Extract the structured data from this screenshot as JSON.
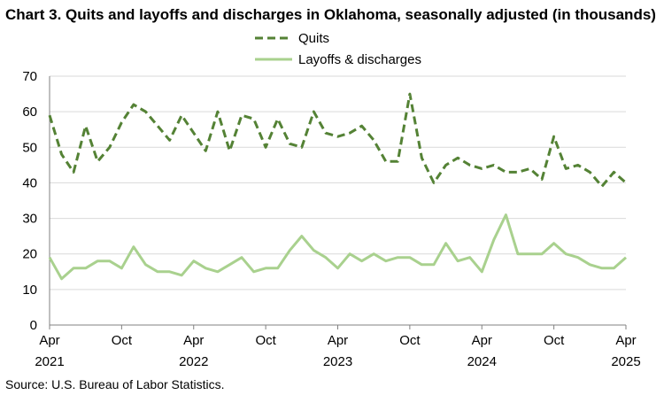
{
  "title": "Chart 3. Quits and layoffs and discharges in Oklahoma, seasonally adjusted (in thousands)",
  "source": "Source: U.S. Bureau of Labor Statistics.",
  "chart_data": {
    "type": "line",
    "title": "Chart 3. Quits and layoffs and discharges in Oklahoma, seasonally adjusted (in thousands)",
    "xlabel": "",
    "ylabel": "",
    "ylim": [
      0,
      70
    ],
    "yticks": [
      0,
      10,
      20,
      30,
      40,
      50,
      60,
      70
    ],
    "grid": true,
    "legend_position": "top-center",
    "x": [
      "Apr 2021",
      "May 2021",
      "Jun 2021",
      "Jul 2021",
      "Aug 2021",
      "Sep 2021",
      "Oct 2021",
      "Nov 2021",
      "Dec 2021",
      "Jan 2022",
      "Feb 2022",
      "Mar 2022",
      "Apr 2022",
      "May 2022",
      "Jun 2022",
      "Jul 2022",
      "Aug 2022",
      "Sep 2022",
      "Oct 2022",
      "Nov 2022",
      "Dec 2022",
      "Jan 2023",
      "Feb 2023",
      "Mar 2023",
      "Apr 2023",
      "May 2023",
      "Jun 2023",
      "Jul 2023",
      "Aug 2023",
      "Sep 2023",
      "Oct 2023",
      "Nov 2023",
      "Dec 2023",
      "Jan 2024",
      "Feb 2024",
      "Mar 2024",
      "Apr 2024",
      "May 2024",
      "Jun 2024",
      "Jul 2024",
      "Aug 2024",
      "Sep 2024",
      "Oct 2024",
      "Nov 2024",
      "Dec 2024",
      "Jan 2025",
      "Feb 2025",
      "Mar 2025",
      "Apr 2025"
    ],
    "x_tick_labels": [
      {
        "index": 0,
        "month": "Apr",
        "year": "2021"
      },
      {
        "index": 6,
        "month": "Oct",
        "year": ""
      },
      {
        "index": 12,
        "month": "Apr",
        "year": "2022"
      },
      {
        "index": 18,
        "month": "Oct",
        "year": ""
      },
      {
        "index": 24,
        "month": "Apr",
        "year": "2023"
      },
      {
        "index": 30,
        "month": "Oct",
        "year": ""
      },
      {
        "index": 36,
        "month": "Apr",
        "year": "2024"
      },
      {
        "index": 42,
        "month": "Oct",
        "year": ""
      },
      {
        "index": 48,
        "month": "Apr",
        "year": "2025"
      }
    ],
    "series": [
      {
        "name": "Quits",
        "color": "#548235",
        "style": "dashed",
        "values": [
          59,
          48,
          43,
          56,
          46,
          50,
          57,
          62,
          60,
          56,
          52,
          59,
          54,
          49,
          60,
          49,
          59,
          58,
          50,
          58,
          51,
          50,
          60,
          54,
          53,
          54,
          56,
          52,
          46,
          46,
          65,
          47,
          40,
          45,
          47,
          45,
          44,
          45,
          43,
          43,
          44,
          41,
          53,
          44,
          45,
          43,
          39,
          43,
          40
        ]
      },
      {
        "name": "Layoffs & discharges",
        "color": "#a9d18e",
        "style": "solid",
        "values": [
          19,
          13,
          16,
          16,
          18,
          18,
          16,
          22,
          17,
          15,
          15,
          14,
          18,
          16,
          15,
          17,
          19,
          15,
          16,
          16,
          21,
          25,
          21,
          19,
          16,
          20,
          18,
          20,
          18,
          19,
          19,
          17,
          17,
          23,
          18,
          19,
          15,
          24,
          31,
          20,
          20,
          20,
          23,
          20,
          19,
          17,
          16,
          16,
          19
        ]
      }
    ]
  }
}
